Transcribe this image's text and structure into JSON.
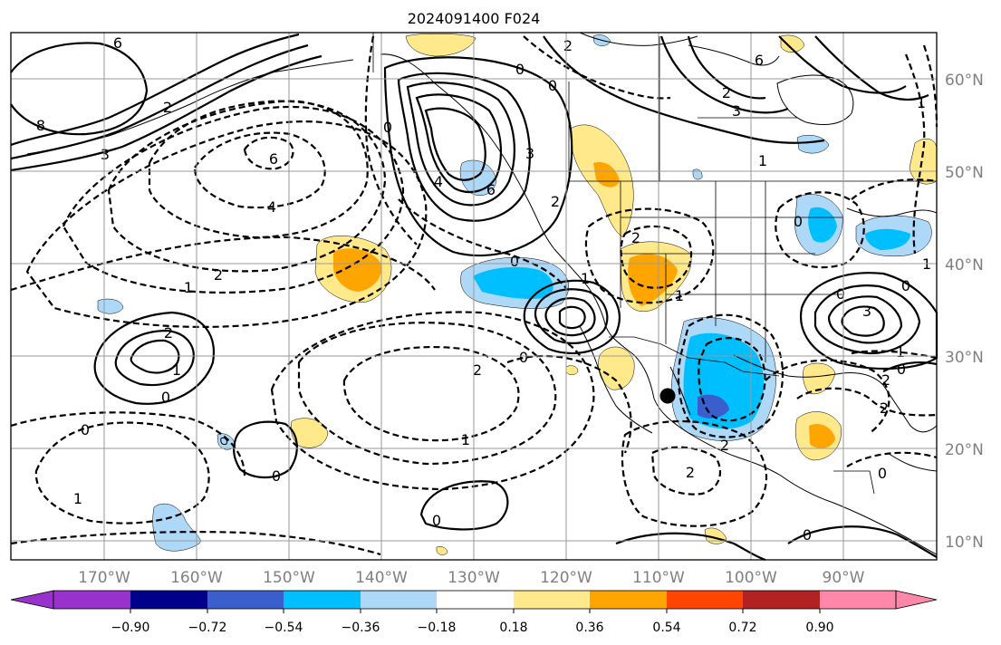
{
  "title": "2024091400 F024",
  "lat_ticks": [
    "60°N",
    "50°N",
    "40°N",
    "30°N",
    "20°N",
    "10°N"
  ],
  "lon_ticks": [
    "170°W",
    "160°W",
    "150°W",
    "140°W",
    "130°W",
    "120°W",
    "110°W",
    "100°W",
    "90°W"
  ],
  "colorbar": {
    "tick_labels": [
      "−0.90",
      "−0.72",
      "−0.54",
      "−0.36",
      "−0.18",
      "0.18",
      "0.36",
      "0.54",
      "0.72",
      "0.90"
    ],
    "colors": [
      "#9932cc",
      "#00008b",
      "#3a5fcd",
      "#00bfff",
      "#add8f7",
      "#ffffff",
      "#ffe98a",
      "#ffa500",
      "#ff4500",
      "#b22222",
      "#ff88aa"
    ]
  },
  "contour_labels": [
    "6",
    "8",
    "3",
    "2",
    "6",
    "4",
    "0",
    "0",
    "2",
    "0",
    "6",
    "2",
    "3",
    "4",
    "6",
    "2",
    "3",
    "1",
    "1",
    "1",
    "2",
    "1",
    "0",
    "0",
    "2",
    "0",
    "0",
    "1",
    "0",
    "2",
    "1",
    "1",
    "0",
    "2",
    "2",
    "0",
    "0",
    "1",
    "0",
    "3",
    "2",
    "1",
    "1",
    "0",
    "2",
    "2",
    "0",
    "0"
  ],
  "marker": {
    "name": "station-dot",
    "color": "#000000"
  },
  "map": {
    "projection": "plate-carree",
    "lon_range": [
      -180,
      -80
    ],
    "lat_range": [
      8,
      66
    ],
    "shading_colors": {
      "neg_light": "#add8f7",
      "neg": "#00bfff",
      "neg_dark": "#3a5fcd",
      "pos_light": "#ffe98a",
      "pos": "#ffa500"
    }
  }
}
